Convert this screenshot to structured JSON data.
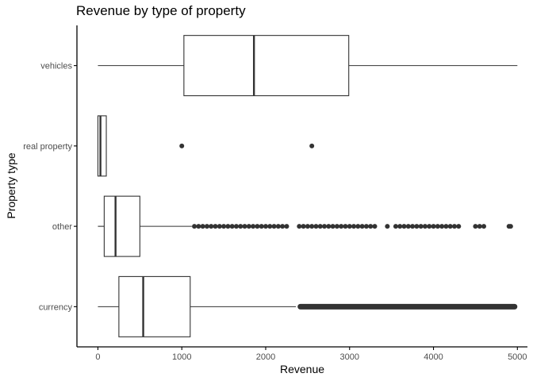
{
  "chart_data": {
    "type": "boxplot",
    "title": "Revenue by type of property",
    "xlabel": "Revenue",
    "ylabel": "Property type",
    "xlim": [
      -250,
      5120
    ],
    "xticks": [
      0,
      1000,
      2000,
      3000,
      4000,
      5000
    ],
    "categories": [
      "vehicles",
      "real property",
      "other",
      "currency"
    ],
    "grid": false,
    "colors": {
      "box_stroke": "#333333",
      "box_fill": "#ffffff",
      "outlier": "#333333",
      "axis": "#000000",
      "tick_label": "#4d4d4d"
    },
    "boxes": [
      {
        "category": "vehicles",
        "whisker_low": 0,
        "q1": 1025,
        "median": 1860,
        "q3": 2990,
        "whisker_high": 5000,
        "outliers": []
      },
      {
        "category": "real property",
        "whisker_low": 0,
        "q1": 0,
        "median": 30,
        "q3": 100,
        "whisker_high": 100,
        "outliers": [
          1000,
          2550
        ]
      },
      {
        "category": "other",
        "whisker_low": 0,
        "q1": 75,
        "median": 210,
        "q3": 500,
        "whisker_high": 1120,
        "outliers": [
          1150,
          1200,
          1250,
          1300,
          1350,
          1400,
          1450,
          1500,
          1550,
          1600,
          1650,
          1700,
          1750,
          1800,
          1850,
          1900,
          1950,
          2000,
          2050,
          2100,
          2150,
          2200,
          2250,
          2400,
          2450,
          2500,
          2550,
          2600,
          2650,
          2700,
          2750,
          2800,
          2850,
          2900,
          2950,
          3000,
          3050,
          3100,
          3150,
          3200,
          3250,
          3300,
          3450,
          3550,
          3600,
          3650,
          3700,
          3750,
          3800,
          3850,
          3900,
          3950,
          4000,
          4050,
          4100,
          4150,
          4200,
          4250,
          4300,
          4500,
          4550,
          4600,
          4900,
          4920
        ]
      },
      {
        "category": "currency",
        "whisker_low": 0,
        "q1": 250,
        "median": 540,
        "q3": 1100,
        "whisker_high": 2360,
        "outlier_band": [
          2380,
          5000
        ]
      }
    ]
  }
}
